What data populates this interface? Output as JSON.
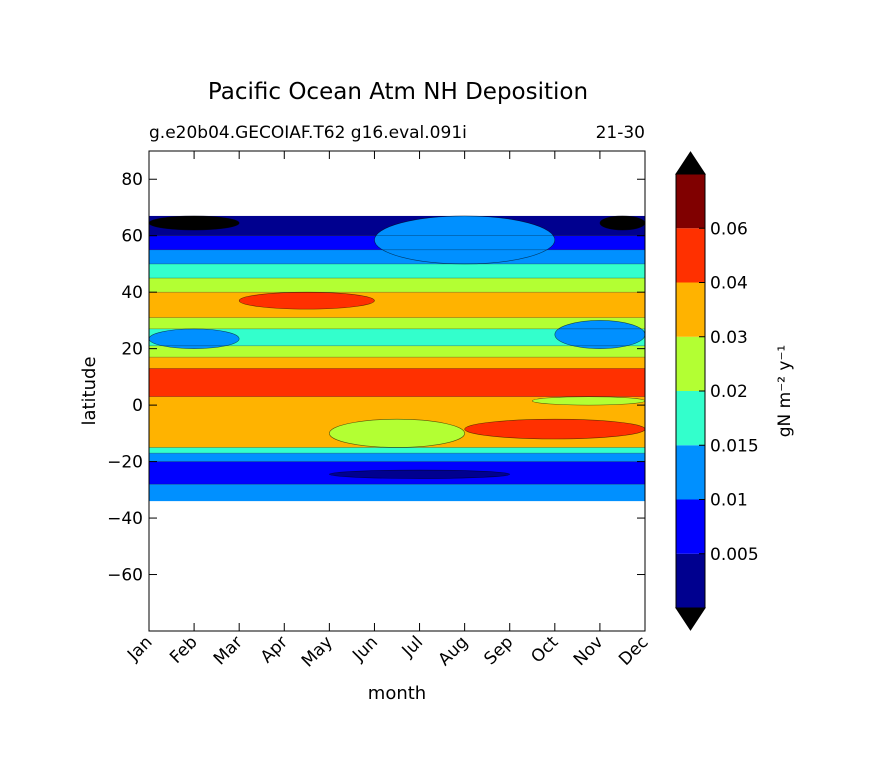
{
  "chart_data": {
    "type": "heatmap",
    "title": "Pacific Ocean Atm NH Deposition",
    "subtitle_left": "g.e20b04.GECOIAF.T62 g16.eval.091i",
    "subtitle_right": "21-30",
    "xlabel": "month",
    "ylabel": "latitude",
    "x_categories": [
      "Jan",
      "Feb",
      "Mar",
      "Apr",
      "May",
      "Jun",
      "Jul",
      "Aug",
      "Sep",
      "Oct",
      "Nov",
      "Dec"
    ],
    "ylim": [
      -80,
      90
    ],
    "yticks": [
      "80",
      "60",
      "40",
      "20",
      "0",
      "−20",
      "−40",
      "−60"
    ],
    "ytick_values": [
      80,
      60,
      40,
      20,
      0,
      -20,
      -40,
      -60
    ],
    "data_lat_range": [
      -34,
      67
    ],
    "colorbar": {
      "label": "gN m⁻² y⁻¹",
      "extend": "both",
      "levels": [
        "0.005",
        "0.01",
        "0.015",
        "0.02",
        "0.03",
        "0.04",
        "0.06"
      ],
      "colors": [
        "#00008f",
        "#0000ff",
        "#0090ff",
        "#33ffcc",
        "#b3ff33",
        "#ffb300",
        "#ff3000",
        "#800000"
      ],
      "under_color": "#000000",
      "over_color": "#000000"
    },
    "field_bands": [
      {
        "lat_from": -34,
        "lat_to": -28,
        "level": 2,
        "note": "0.01-0.015"
      },
      {
        "lat_from": -28,
        "lat_to": -20,
        "level": 1,
        "note": "0.005-0.01"
      },
      {
        "lat_from": -20,
        "lat_to": -17,
        "level": 2
      },
      {
        "lat_from": -17,
        "lat_to": -15,
        "level": 3
      },
      {
        "lat_from": -15,
        "lat_to": 3,
        "level": 5
      },
      {
        "lat_from": 3,
        "lat_to": 13,
        "level": 6
      },
      {
        "lat_from": 13,
        "lat_to": 17,
        "level": 5
      },
      {
        "lat_from": 17,
        "lat_to": 21,
        "level": 4
      },
      {
        "lat_from": 21,
        "lat_to": 27,
        "level": 3
      },
      {
        "lat_from": 27,
        "lat_to": 31,
        "level": 4
      },
      {
        "lat_from": 31,
        "lat_to": 40,
        "level": 5
      },
      {
        "lat_from": 40,
        "lat_to": 45,
        "level": 4
      },
      {
        "lat_from": 45,
        "lat_to": 50,
        "level": 3
      },
      {
        "lat_from": 50,
        "lat_to": 55,
        "level": 2
      },
      {
        "lat_from": 55,
        "lat_to": 60,
        "level": 1
      },
      {
        "lat_from": 60,
        "lat_to": 67,
        "level": 0
      }
    ],
    "field_patches": [
      {
        "month_from": 4.0,
        "month_to": 8.0,
        "lat_from": -26,
        "lat_to": -23,
        "level": 0
      },
      {
        "month_from": 7.0,
        "month_to": 11.0,
        "lat_from": -12,
        "lat_to": -5,
        "level": 6
      },
      {
        "month_from": 4.0,
        "month_to": 7.0,
        "lat_from": -15,
        "lat_to": -5,
        "level": 4
      },
      {
        "month_from": 2.0,
        "month_to": 5.0,
        "lat_from": 34,
        "lat_to": 40,
        "level": 6
      },
      {
        "month_from": 5.0,
        "month_to": 9.0,
        "lat_from": 50,
        "lat_to": 67,
        "level": 2
      },
      {
        "month_from": 0.0,
        "month_to": 2.0,
        "lat_from": 20,
        "lat_to": 27,
        "level": 2
      },
      {
        "month_from": 9.0,
        "month_to": 11.0,
        "lat_from": 20,
        "lat_to": 30,
        "level": 2
      },
      {
        "month_from": 0.0,
        "month_to": 2.0,
        "lat_from": 62,
        "lat_to": 67,
        "level": -1
      },
      {
        "month_from": 10.0,
        "month_to": 11.0,
        "lat_from": 62,
        "lat_to": 67,
        "level": -1
      },
      {
        "month_from": 8.5,
        "month_to": 11.0,
        "lat_from": 0,
        "lat_to": 3,
        "level": 4
      }
    ]
  }
}
